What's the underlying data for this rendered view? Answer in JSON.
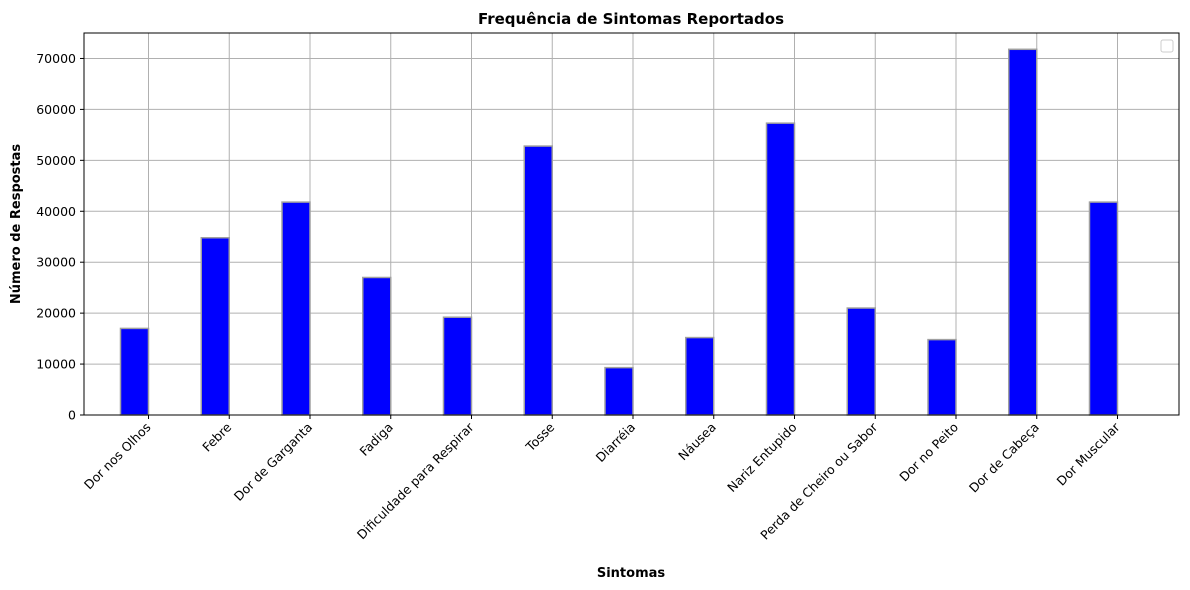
{
  "chart_data": {
    "type": "bar",
    "title": "Frequência de Sintomas Reportados",
    "xlabel": "Sintomas",
    "ylabel": "Número de Respostas",
    "categories": [
      "Dor nos Olhos",
      "Febre",
      "Dor de Garganta",
      "Fadiga",
      "Dificuldade para Respirar",
      "Tosse",
      "Diarréia",
      "Náusea",
      "Nariz Entupido",
      "Perda de Cheiro ou Sabor",
      "Dor no Peito",
      "Dor de Cabeça",
      "Dor Muscular"
    ],
    "values": [
      17000,
      34800,
      41800,
      27000,
      19200,
      52800,
      9300,
      15200,
      57300,
      21000,
      14800,
      71800,
      41800
    ],
    "ylim": [
      0,
      75000
    ],
    "yticks": [
      0,
      10000,
      20000,
      30000,
      40000,
      50000,
      60000,
      70000
    ],
    "bar_color": "#0000ff",
    "bar_edge_color": "#a0a0a0",
    "grid": true,
    "legend": "top-right (empty)"
  }
}
